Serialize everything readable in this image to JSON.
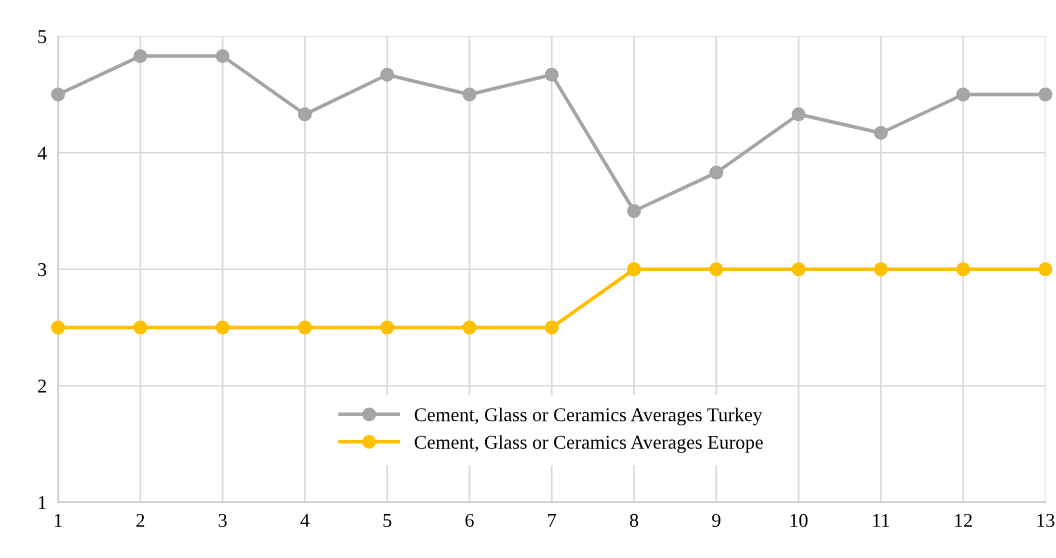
{
  "chart_data": {
    "type": "line",
    "x": [
      1,
      2,
      3,
      4,
      5,
      6,
      7,
      8,
      9,
      10,
      11,
      12,
      13
    ],
    "series": [
      {
        "name": "Cement, Glass or Ceramics Averages Turkey",
        "color": "#a5a5a5",
        "values": [
          4.5,
          4.83,
          4.83,
          4.33,
          4.67,
          4.5,
          4.67,
          3.5,
          3.83,
          4.33,
          4.17,
          4.5,
          4.5
        ]
      },
      {
        "name": "Cement, Glass or Ceramics Averages Europe",
        "color": "#ffc000",
        "values": [
          2.5,
          2.5,
          2.5,
          2.5,
          2.5,
          2.5,
          2.5,
          3,
          3,
          3,
          3,
          3,
          3
        ]
      }
    ],
    "xlim": [
      1,
      13
    ],
    "xticks": [
      1,
      2,
      3,
      4,
      5,
      6,
      7,
      8,
      9,
      10,
      11,
      12,
      13
    ],
    "ylim": [
      1,
      5
    ],
    "yticks": [
      1,
      2,
      3,
      4,
      5
    ],
    "grid": true,
    "legend": "bottom",
    "marker": "circle",
    "line_style": "solid"
  }
}
